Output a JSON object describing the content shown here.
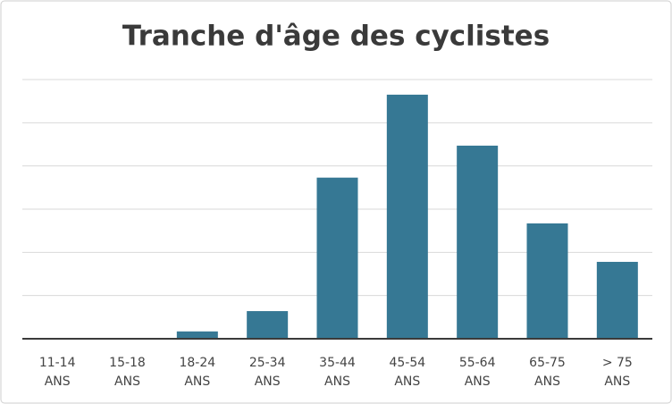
{
  "chart_data": {
    "type": "bar",
    "title": "Tranche d'âge des cyclistes",
    "categories": [
      "11-14 ANS",
      "15-18 ANS",
      "18-24 ANS",
      "25-34 ANS",
      "35-44 ANS",
      "45-54 ANS",
      "55-64 ANS",
      "65-75 ANS",
      "> 75 ANS"
    ],
    "values": [
      0,
      0,
      0.17,
      0.64,
      3.73,
      5.65,
      4.47,
      2.67,
      1.78
    ],
    "color": "#367894",
    "ylim": [
      0,
      6
    ],
    "gridlines": [
      1,
      2,
      3,
      4,
      5,
      6
    ],
    "grid": true
  }
}
